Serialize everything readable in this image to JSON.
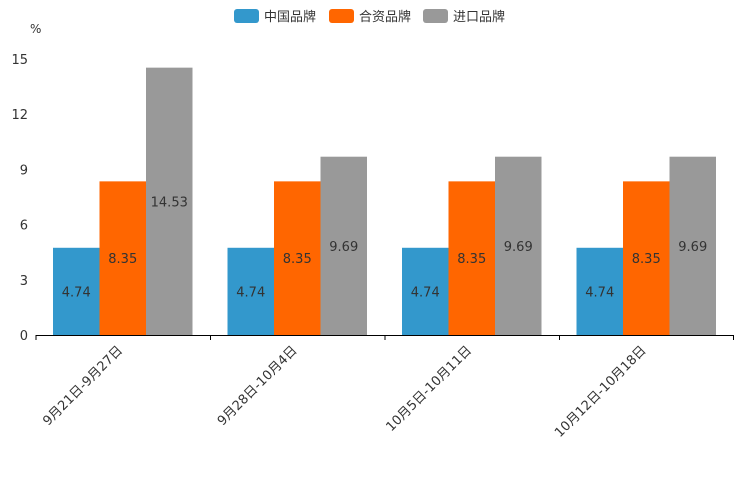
{
  "chart_data": {
    "type": "bar",
    "y_unit": "%",
    "categories": [
      "9月21日-9月27日",
      "9月28日-10月4日",
      "10月5日-10月11日",
      "10月12日-10月18日"
    ],
    "series": [
      {
        "name": "中国品牌",
        "color": "#3398CC",
        "values": [
          4.74,
          4.74,
          4.74,
          4.74
        ]
      },
      {
        "name": "合资品牌",
        "color": "#FF6600",
        "values": [
          8.35,
          8.35,
          8.35,
          8.35
        ]
      },
      {
        "name": "进口品牌",
        "color": "#999999",
        "values": [
          14.53,
          9.69,
          9.69,
          9.69
        ]
      }
    ],
    "ylim": [
      0,
      15
    ],
    "yticks": [
      0,
      3,
      6,
      9,
      12,
      15
    ],
    "legend_position": "top-center",
    "grid": false
  }
}
